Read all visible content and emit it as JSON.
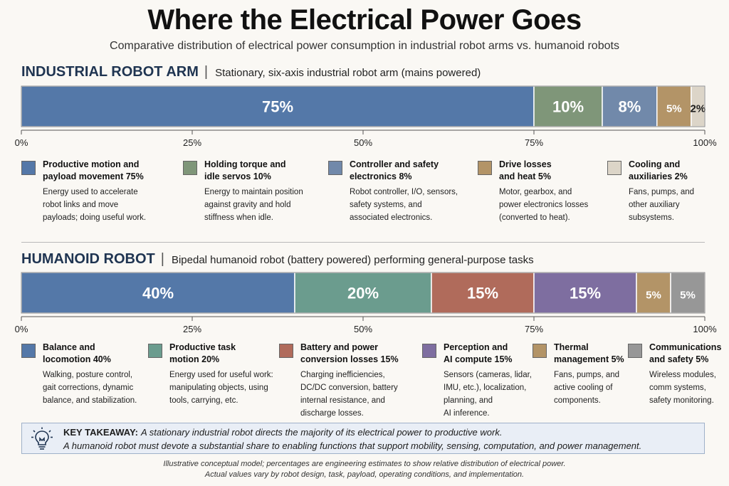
{
  "title": "Where the Electrical Power Goes",
  "subtitle": "Comparative distribution of electrical power consumption in industrial robot arms vs. humanoid robots",
  "sections": [
    {
      "heading": "INDUSTRIAL ROBOT ARM",
      "separator": "|",
      "description": "Stationary, six-axis industrial robot arm (mains powered)",
      "legend": [
        {
          "title1": "Productive motion and",
          "title2": "payload movement  75%",
          "desc": [
            "Energy used to accelerate",
            "robot links and move",
            "payloads; doing useful work."
          ]
        },
        {
          "title1": "Holding torque and",
          "title2": "idle servos  10%",
          "desc": [
            "Energy to maintain position",
            "against gravity and hold",
            "stiffness when idle."
          ]
        },
        {
          "title1": "Controller and safety",
          "title2": "electronics  8%",
          "desc": [
            "Robot controller, I/O, sensors,",
            "safety systems, and",
            "associated electronics."
          ]
        },
        {
          "title1": "Drive losses",
          "title2": "and heat  5%",
          "desc": [
            "Motor, gearbox, and",
            "power electronics losses",
            "(converted to heat)."
          ]
        },
        {
          "title1": "Cooling and",
          "title2": "auxiliaries  2%",
          "desc": [
            "Fans, pumps, and",
            "other auxiliary",
            "subsystems."
          ]
        }
      ]
    },
    {
      "heading": "HUMANOID ROBOT",
      "separator": "|",
      "description": "Bipedal humanoid robot (battery powered) performing general-purpose tasks",
      "legend": [
        {
          "title1": "Balance and",
          "title2": "locomotion  40%",
          "desc": [
            "Walking, posture control,",
            "gait corrections, dynamic",
            "balance, and stabilization."
          ]
        },
        {
          "title1": "Productive task",
          "title2": "motion  20%",
          "desc": [
            "Energy used for useful work:",
            "manipulating objects, using",
            "tools, carrying, etc."
          ]
        },
        {
          "title1": "Battery and power",
          "title2": "conversion losses  15%",
          "desc": [
            "Charging inefficiencies,",
            "DC/DC conversion, battery",
            "internal resistance, and",
            "discharge losses."
          ]
        },
        {
          "title1": "Perception and",
          "title2": "AI compute  15%",
          "desc": [
            "Sensors (cameras, lidar,",
            "IMU, etc.), localization,",
            "planning, and",
            "AI inference."
          ]
        },
        {
          "title1": "Thermal",
          "title2": "management  5%",
          "desc": [
            "Fans, pumps, and",
            "active cooling of",
            "components."
          ]
        },
        {
          "title1": "Communications",
          "title2": "and safety  5%",
          "desc": [
            "Wireless modules,",
            "comm systems,",
            "safety monitoring."
          ]
        }
      ]
    }
  ],
  "chart_data": [
    {
      "type": "bar",
      "orientation": "horizontal-stacked",
      "title": "INDUSTRIAL ROBOT ARM",
      "xlim": [
        0,
        100
      ],
      "ticks": [
        "0%",
        "25%",
        "50%",
        "75%",
        "100%"
      ],
      "segments": [
        {
          "label": "75%",
          "value": 75,
          "color": "#5478a8",
          "text_color": "#ffffff"
        },
        {
          "label": "10%",
          "value": 10,
          "color": "#7f9679",
          "text_color": "#ffffff"
        },
        {
          "label": "8%",
          "value": 8,
          "color": "#7189aa",
          "text_color": "#ffffff"
        },
        {
          "label": "5%",
          "value": 5,
          "color": "#b39467",
          "text_color": "#ffffff"
        },
        {
          "label": "2%",
          "value": 2,
          "color": "#dcd5c8",
          "text_color": "#1c1c1c"
        }
      ]
    },
    {
      "type": "bar",
      "orientation": "horizontal-stacked",
      "title": "HUMANOID ROBOT",
      "xlim": [
        0,
        100
      ],
      "ticks": [
        "0%",
        "25%",
        "50%",
        "75%",
        "100%"
      ],
      "segments": [
        {
          "label": "40%",
          "value": 40,
          "color": "#5478a8",
          "text_color": "#ffffff"
        },
        {
          "label": "20%",
          "value": 20,
          "color": "#6b9c8e",
          "text_color": "#ffffff"
        },
        {
          "label": "15%",
          "value": 15,
          "color": "#b06b5b",
          "text_color": "#ffffff"
        },
        {
          "label": "15%",
          "value": 15,
          "color": "#7e6ea0",
          "text_color": "#ffffff"
        },
        {
          "label": "5%",
          "value": 5,
          "color": "#b39467",
          "text_color": "#ffffff"
        },
        {
          "label": "5%",
          "value": 5,
          "color": "#979797",
          "text_color": "#ffffff"
        }
      ]
    }
  ],
  "takeaway": {
    "label": "KEY TAKEAWAY:",
    "line1": "A stationary industrial robot directs the majority of its electrical power to productive work.",
    "line2": "A humanoid robot must devote a substantial share to enabling functions that support mobility, sensing, computation, and power management."
  },
  "footnote": {
    "line1": "Illustrative conceptual model; percentages are engineering estimates to show relative distribution of electrical power.",
    "line2": "Actual values vary by robot design, task, payload, operating conditions, and implementation."
  },
  "icons": {
    "takeaway_icon": "lightbulb-icon"
  }
}
